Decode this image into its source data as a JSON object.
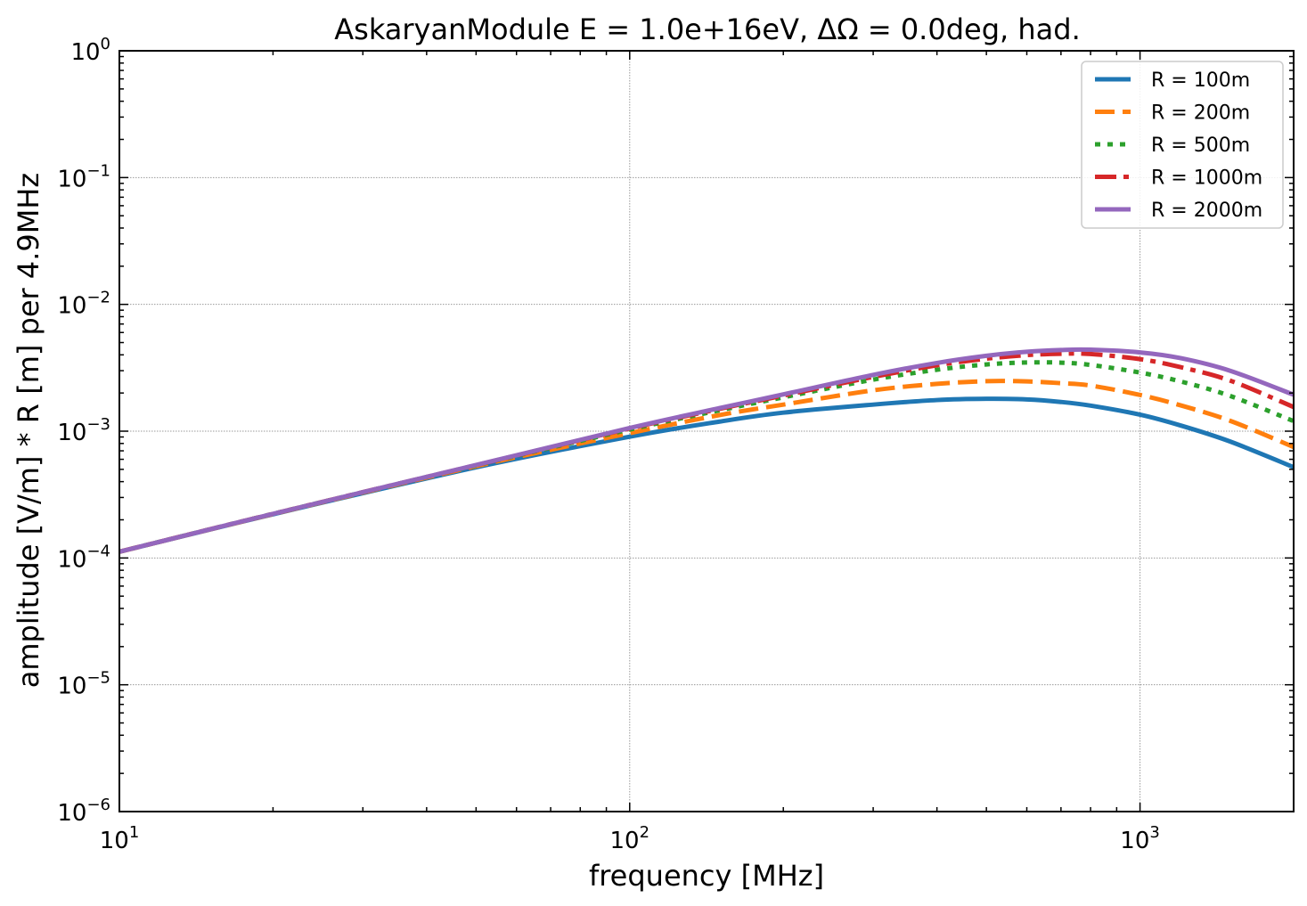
{
  "chart_data": {
    "type": "line",
    "title": "AskaryanModule E = 1.0e+16eV, ΔΩ = 0.0deg, had.",
    "xlabel": "frequency [MHz]",
    "ylabel": "amplitude [V/m] * R [m] per 4.9MHz",
    "xscale": "log",
    "yscale": "log",
    "xlim": [
      10,
      2000
    ],
    "ylim": [
      1e-06,
      1
    ],
    "grid": true,
    "legend_position": "top-right",
    "x_ticks": [
      {
        "value": 10,
        "base": "10",
        "exp": "1"
      },
      {
        "value": 100,
        "base": "10",
        "exp": "2"
      },
      {
        "value": 1000,
        "base": "10",
        "exp": "3"
      }
    ],
    "y_ticks": [
      {
        "value": 1e-06,
        "base": "10",
        "exp": "−6"
      },
      {
        "value": 1e-05,
        "base": "10",
        "exp": "−5"
      },
      {
        "value": 0.0001,
        "base": "10",
        "exp": "−4"
      },
      {
        "value": 0.001,
        "base": "10",
        "exp": "−3"
      },
      {
        "value": 0.01,
        "base": "10",
        "exp": "−2"
      },
      {
        "value": 0.1,
        "base": "10",
        "exp": "−1"
      },
      {
        "value": 1,
        "base": "10",
        "exp": "0"
      }
    ],
    "x": [
      10,
      20,
      50,
      100,
      150,
      200,
      300,
      400,
      500,
      600,
      700,
      800,
      1000,
      1200,
      1500,
      2000
    ],
    "series": [
      {
        "name": "R = 100m",
        "color": "#1f77b4",
        "style": "solid",
        "values": [
          0.000112,
          0.000221,
          0.000519,
          0.000905,
          0.00119,
          0.0014,
          0.00162,
          0.00176,
          0.0018,
          0.00178,
          0.0017,
          0.00159,
          0.00135,
          0.00111,
          0.00083,
          0.00052
        ]
      },
      {
        "name": "R = 200m",
        "color": "#ff7f0e",
        "style": "dashed",
        "values": [
          0.000112,
          0.000222,
          0.00053,
          0.000965,
          0.00134,
          0.00162,
          0.0021,
          0.00236,
          0.00248,
          0.00247,
          0.00239,
          0.00229,
          0.00193,
          0.0016,
          0.00121,
          0.00075
        ]
      },
      {
        "name": "R = 500m",
        "color": "#2ca02c",
        "style": "dotted",
        "values": [
          0.000112,
          0.000223,
          0.000538,
          0.00103,
          0.00146,
          0.00185,
          0.00255,
          0.00305,
          0.00336,
          0.00348,
          0.00347,
          0.00333,
          0.0029,
          0.00247,
          0.0019,
          0.0012
        ]
      },
      {
        "name": "R = 1000m",
        "color": "#d62728",
        "style": "dashdot",
        "values": [
          0.000112,
          0.000223,
          0.00054,
          0.00105,
          0.0015,
          0.00191,
          0.00268,
          0.00331,
          0.00373,
          0.00398,
          0.00408,
          0.00406,
          0.0037,
          0.0032,
          0.00251,
          0.00155
        ]
      },
      {
        "name": "R = 2000m",
        "color": "#9467bd",
        "style": "solid",
        "values": [
          0.000112,
          0.000223,
          0.000541,
          0.00106,
          0.00152,
          0.00195,
          0.00278,
          0.00345,
          0.00393,
          0.00423,
          0.00437,
          0.00439,
          0.00418,
          0.00377,
          0.003,
          0.00194
        ]
      }
    ]
  }
}
